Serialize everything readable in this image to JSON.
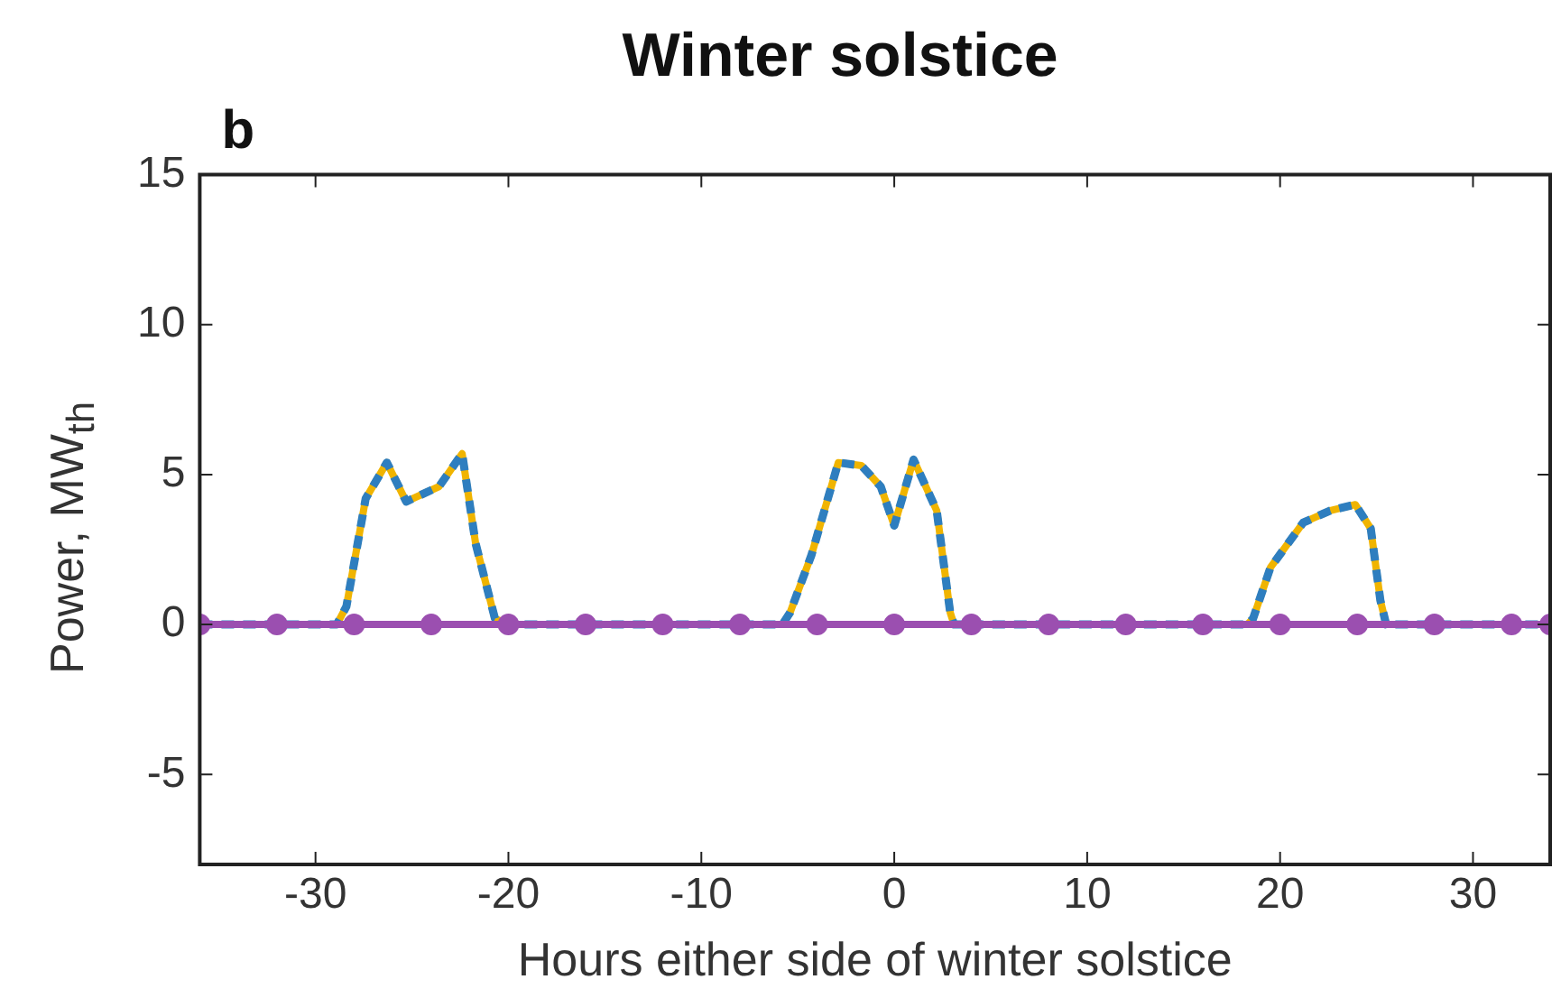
{
  "chart_data": {
    "type": "line",
    "title": "Winter solstice",
    "annotations": [
      "b"
    ],
    "xlabel": "Hours either side of winter solstice",
    "ylabel": "Power, MW$_{th}$",
    "xlim": [
      -36,
      34
    ],
    "xticks": [
      -30,
      -20,
      -10,
      0,
      10,
      20,
      30
    ],
    "ylim": [
      -8,
      15
    ],
    "yticks": [
      -5,
      0,
      5,
      10,
      15
    ],
    "grid": false,
    "legend": false,
    "series": [
      {
        "color": "#f0b400",
        "line_style": "solid",
        "marker": "none",
        "x": [
          -36,
          -28.9,
          -28.4,
          -27.4,
          -26.3,
          -25.3,
          -23.6,
          -22.4,
          -21.7,
          -20.7,
          -20,
          -5.8,
          -5.4,
          -4.3,
          -2.9,
          -1.7,
          -0.7,
          0,
          1,
          2.2,
          2.9,
          3.1,
          18.3,
          18.6,
          19.5,
          21.2,
          22.6,
          23.9,
          24.7,
          25.2,
          25.5,
          34
        ],
        "values": [
          0,
          0,
          0.6,
          4.2,
          5.4,
          4.1,
          4.6,
          5.7,
          2.7,
          0.2,
          0,
          0,
          0.4,
          2.3,
          5.4,
          5.3,
          4.6,
          3.3,
          5.5,
          3.8,
          0.4,
          0,
          0,
          0.2,
          1.9,
          3.4,
          3.8,
          4,
          3.2,
          0.8,
          0,
          0
        ]
      },
      {
        "color": "#2e7ebf",
        "line_style": "dashed",
        "marker": "none",
        "x": [
          -36,
          -28.9,
          -28.4,
          -27.4,
          -26.3,
          -25.3,
          -23.6,
          -22.4,
          -21.7,
          -20.7,
          -20,
          -5.8,
          -5.4,
          -4.3,
          -2.9,
          -1.7,
          -0.7,
          0,
          1,
          2.2,
          2.9,
          3.1,
          18.3,
          18.6,
          19.5,
          21.2,
          22.6,
          23.9,
          24.7,
          25.2,
          25.5,
          34
        ],
        "values": [
          0,
          0,
          0.6,
          4.2,
          5.4,
          4.1,
          4.6,
          5.7,
          2.7,
          0.2,
          0,
          0,
          0.4,
          2.3,
          5.4,
          5.3,
          4.6,
          3.3,
          5.5,
          3.8,
          0.4,
          0,
          0,
          0.2,
          1.9,
          3.4,
          3.8,
          4,
          3.2,
          0.8,
          0,
          0
        ]
      },
      {
        "color": "#9b4fb0",
        "line_style": "solid",
        "marker": "circle",
        "x": [
          -36,
          -32,
          -28,
          -24,
          -20,
          -16,
          -12,
          -8,
          -4,
          0,
          4,
          8,
          12,
          16,
          20,
          24,
          28,
          32,
          34
        ],
        "values": [
          0,
          0,
          0,
          0,
          0,
          0,
          0,
          0,
          0,
          0,
          0,
          0,
          0,
          0,
          0,
          0,
          0,
          0,
          0
        ]
      }
    ]
  }
}
